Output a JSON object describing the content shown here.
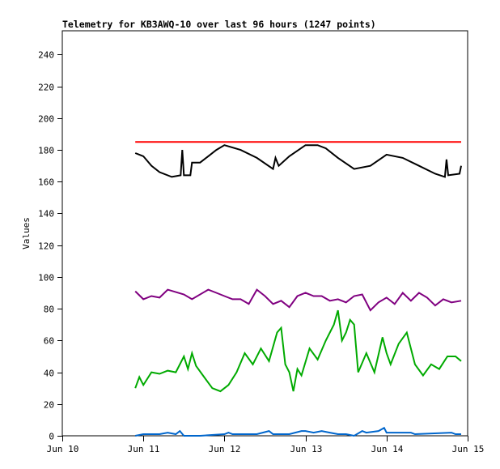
{
  "chart_data": {
    "type": "line",
    "title": "Telemetry for KB3AWQ-10 over last 96 hours (1247 points)",
    "xlabel": "",
    "ylabel": "Values",
    "xlim": [
      0,
      5
    ],
    "ylim": [
      0,
      255
    ],
    "x_units": "days since Jun 10",
    "x_ticks": [
      {
        "v": 0,
        "label": "Jun 10"
      },
      {
        "v": 1,
        "label": "Jun 11"
      },
      {
        "v": 2,
        "label": "Jun 12"
      },
      {
        "v": 3,
        "label": "Jun 13"
      },
      {
        "v": 4,
        "label": "Jun 14"
      },
      {
        "v": 5,
        "label": "Jun 15"
      }
    ],
    "y_ticks": [
      0,
      20,
      40,
      60,
      80,
      100,
      120,
      140,
      160,
      180,
      200,
      220,
      240
    ],
    "grid": false,
    "series": [
      {
        "name": "red",
        "color": "#ff0000",
        "points": [
          [
            0.9,
            185
          ],
          [
            4.92,
            185
          ]
        ]
      },
      {
        "name": "black",
        "color": "#000000",
        "points": [
          [
            0.9,
            178
          ],
          [
            0.95,
            177
          ],
          [
            1.0,
            176
          ],
          [
            1.1,
            170
          ],
          [
            1.2,
            166
          ],
          [
            1.35,
            163
          ],
          [
            1.46,
            164
          ],
          [
            1.48,
            180
          ],
          [
            1.5,
            164
          ],
          [
            1.58,
            164
          ],
          [
            1.6,
            172
          ],
          [
            1.7,
            172
          ],
          [
            1.8,
            176
          ],
          [
            1.9,
            180
          ],
          [
            2.0,
            183
          ],
          [
            2.2,
            180
          ],
          [
            2.4,
            175
          ],
          [
            2.6,
            168
          ],
          [
            2.63,
            175
          ],
          [
            2.67,
            170
          ],
          [
            2.8,
            176
          ],
          [
            3.0,
            183
          ],
          [
            3.15,
            183
          ],
          [
            3.25,
            181
          ],
          [
            3.4,
            175
          ],
          [
            3.6,
            168
          ],
          [
            3.8,
            170
          ],
          [
            4.0,
            177
          ],
          [
            4.2,
            175
          ],
          [
            4.4,
            170
          ],
          [
            4.6,
            165
          ],
          [
            4.72,
            163
          ],
          [
            4.74,
            174
          ],
          [
            4.76,
            164
          ],
          [
            4.9,
            165
          ],
          [
            4.92,
            170
          ]
        ]
      },
      {
        "name": "purple",
        "color": "#800080",
        "points": [
          [
            0.9,
            91
          ],
          [
            1.0,
            86
          ],
          [
            1.1,
            88
          ],
          [
            1.2,
            87
          ],
          [
            1.3,
            92
          ],
          [
            1.5,
            89
          ],
          [
            1.6,
            86
          ],
          [
            1.8,
            92
          ],
          [
            1.9,
            90
          ],
          [
            2.0,
            88
          ],
          [
            2.1,
            86
          ],
          [
            2.2,
            86
          ],
          [
            2.3,
            83
          ],
          [
            2.4,
            92
          ],
          [
            2.5,
            88
          ],
          [
            2.6,
            83
          ],
          [
            2.7,
            85
          ],
          [
            2.8,
            81
          ],
          [
            2.9,
            88
          ],
          [
            3.0,
            90
          ],
          [
            3.1,
            88
          ],
          [
            3.2,
            88
          ],
          [
            3.3,
            85
          ],
          [
            3.4,
            86
          ],
          [
            3.5,
            84
          ],
          [
            3.6,
            88
          ],
          [
            3.7,
            89
          ],
          [
            3.8,
            79
          ],
          [
            3.9,
            84
          ],
          [
            4.0,
            87
          ],
          [
            4.1,
            83
          ],
          [
            4.2,
            90
          ],
          [
            4.3,
            85
          ],
          [
            4.4,
            90
          ],
          [
            4.5,
            87
          ],
          [
            4.6,
            82
          ],
          [
            4.7,
            86
          ],
          [
            4.8,
            84
          ],
          [
            4.92,
            85
          ]
        ]
      },
      {
        "name": "green",
        "color": "#00aa00",
        "points": [
          [
            0.9,
            30
          ],
          [
            0.95,
            37
          ],
          [
            1.0,
            32
          ],
          [
            1.1,
            40
          ],
          [
            1.2,
            39
          ],
          [
            1.3,
            41
          ],
          [
            1.4,
            40
          ],
          [
            1.5,
            50
          ],
          [
            1.55,
            42
          ],
          [
            1.6,
            52
          ],
          [
            1.65,
            44
          ],
          [
            1.75,
            37
          ],
          [
            1.85,
            30
          ],
          [
            1.95,
            28
          ],
          [
            2.05,
            32
          ],
          [
            2.15,
            40
          ],
          [
            2.25,
            52
          ],
          [
            2.35,
            45
          ],
          [
            2.45,
            55
          ],
          [
            2.55,
            47
          ],
          [
            2.65,
            65
          ],
          [
            2.7,
            68
          ],
          [
            2.75,
            45
          ],
          [
            2.8,
            40
          ],
          [
            2.85,
            28
          ],
          [
            2.9,
            42
          ],
          [
            2.95,
            38
          ],
          [
            3.05,
            55
          ],
          [
            3.15,
            48
          ],
          [
            3.25,
            60
          ],
          [
            3.35,
            70
          ],
          [
            3.4,
            79
          ],
          [
            3.45,
            60
          ],
          [
            3.5,
            65
          ],
          [
            3.55,
            73
          ],
          [
            3.6,
            70
          ],
          [
            3.65,
            40
          ],
          [
            3.75,
            52
          ],
          [
            3.85,
            40
          ],
          [
            3.95,
            62
          ],
          [
            4.0,
            52
          ],
          [
            4.05,
            45
          ],
          [
            4.15,
            58
          ],
          [
            4.25,
            65
          ],
          [
            4.35,
            45
          ],
          [
            4.45,
            38
          ],
          [
            4.55,
            45
          ],
          [
            4.65,
            42
          ],
          [
            4.75,
            50
          ],
          [
            4.85,
            50
          ],
          [
            4.92,
            47
          ]
        ]
      },
      {
        "name": "blue",
        "color": "#0066cc",
        "points": [
          [
            0.9,
            0
          ],
          [
            1.0,
            1
          ],
          [
            1.2,
            1
          ],
          [
            1.3,
            2
          ],
          [
            1.4,
            1
          ],
          [
            1.45,
            3
          ],
          [
            1.5,
            0
          ],
          [
            1.7,
            0
          ],
          [
            2.0,
            1
          ],
          [
            2.05,
            2
          ],
          [
            2.1,
            1
          ],
          [
            2.4,
            1
          ],
          [
            2.55,
            3
          ],
          [
            2.6,
            1
          ],
          [
            2.8,
            1
          ],
          [
            2.95,
            3
          ],
          [
            3.0,
            3
          ],
          [
            3.1,
            2
          ],
          [
            3.2,
            3
          ],
          [
            3.3,
            2
          ],
          [
            3.4,
            1
          ],
          [
            3.5,
            1
          ],
          [
            3.6,
            0
          ],
          [
            3.7,
            3
          ],
          [
            3.75,
            2
          ],
          [
            3.9,
            3
          ],
          [
            3.97,
            5
          ],
          [
            4.0,
            2
          ],
          [
            4.3,
            2
          ],
          [
            4.35,
            1
          ],
          [
            4.8,
            2
          ],
          [
            4.85,
            1
          ],
          [
            4.92,
            1
          ]
        ]
      }
    ]
  }
}
